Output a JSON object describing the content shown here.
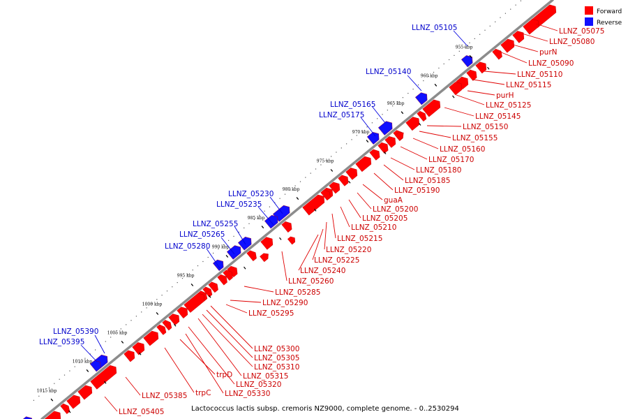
{
  "colors": {
    "forward": "#ff0000",
    "reverse": "#1010ff",
    "forward_line": "#e00000",
    "reverse_line": "#0000e0",
    "backbone": "#8c8c8c"
  },
  "legend": [
    {
      "label": "Forward",
      "strand": "forward"
    },
    {
      "label": "Reverse",
      "strand": "reverse"
    }
  ],
  "caption": "Lactococcus lactis subsp. cremoris NZ9000, complete genome. - 0..2530294",
  "ticks": [
    "955 kbp",
    "960 kbp",
    "965 kbp",
    "970 kbp",
    "975 kbp",
    "980 kbp",
    "985 kbp",
    "990 kbp",
    "995 kbp",
    "1000 kbp",
    "1005 kbp",
    "1010 kbp",
    "1015 kbp"
  ],
  "forward_labels": [
    "LLNZ_05075",
    "LLNZ_05080",
    "purN",
    "LLNZ_05090",
    "LLNZ_05110",
    "LLNZ_05115",
    "purH",
    "LLNZ_05125",
    "LLNZ_05145",
    "LLNZ_05150",
    "LLNZ_05155",
    "LLNZ_05160",
    "LLNZ_05170",
    "LLNZ_05180",
    "LLNZ_05185",
    "LLNZ_05190",
    "guaA",
    "LLNZ_05200",
    "LLNZ_05205",
    "LLNZ_05210",
    "LLNZ_05215",
    "LLNZ_05220",
    "LLNZ_05225",
    "LLNZ_05240",
    "LLNZ_05260",
    "LLNZ_05285",
    "LLNZ_05290",
    "LLNZ_05295",
    "LLNZ_05300",
    "LLNZ_05305",
    "LLNZ_05310",
    "LLNZ_05315",
    "LLNZ_05320",
    "LLNZ_05330",
    "trpD",
    "trpC",
    "LLNZ_05385",
    "LLNZ_05405"
  ],
  "reverse_labels": [
    "LLNZ_05105",
    "LLNZ_05140",
    "LLNZ_05165",
    "LLNZ_05175",
    "LLNZ_05230",
    "LLNZ_05235",
    "LLNZ_05255",
    "LLNZ_05265",
    "LLNZ_05280",
    "LLNZ_05390",
    "LLNZ_05395"
  ]
}
